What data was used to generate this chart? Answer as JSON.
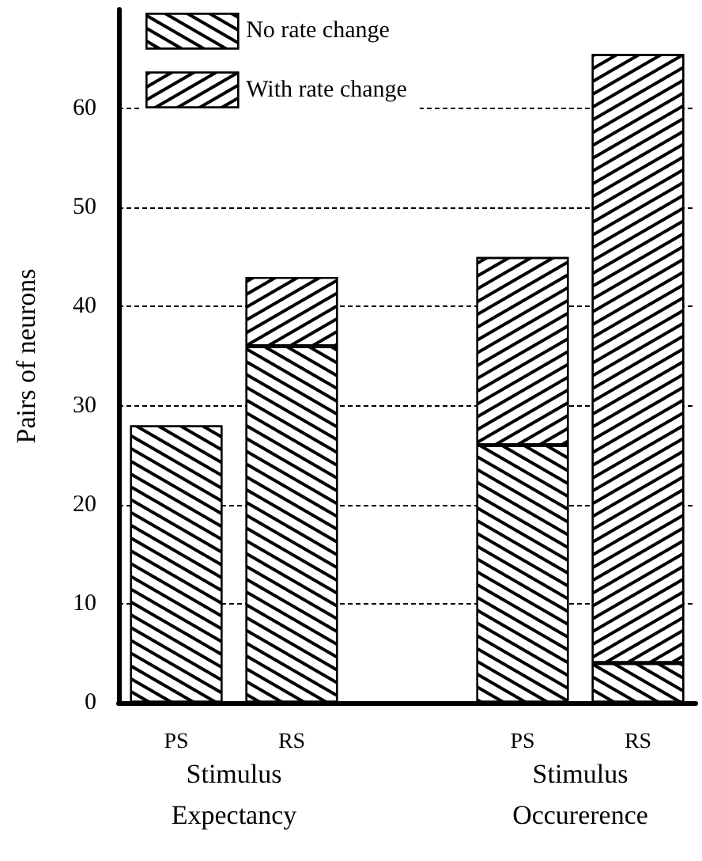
{
  "chart_data": {
    "type": "bar",
    "stacked": true,
    "ylabel": "Pairs of neurons",
    "categories": [
      "PS",
      "RS",
      null,
      "PS",
      "RS"
    ],
    "series": [
      {
        "name": "No rate change",
        "color": "#ffffff",
        "values": [
          28,
          36,
          null,
          26,
          4
        ]
      },
      {
        "name": "With rate change",
        "color": "#ffffff",
        "values": [
          null,
          7,
          null,
          19,
          61.5
        ]
      }
    ],
    "ylim": [
      0,
      70
    ],
    "yticks": [
      0,
      10,
      20,
      30,
      40,
      50,
      60
    ],
    "grid": "y",
    "legend": "top left",
    "annotations": [
      "Stimulus\nExpectancy",
      "Stimulus\nOccurerence"
    ]
  }
}
